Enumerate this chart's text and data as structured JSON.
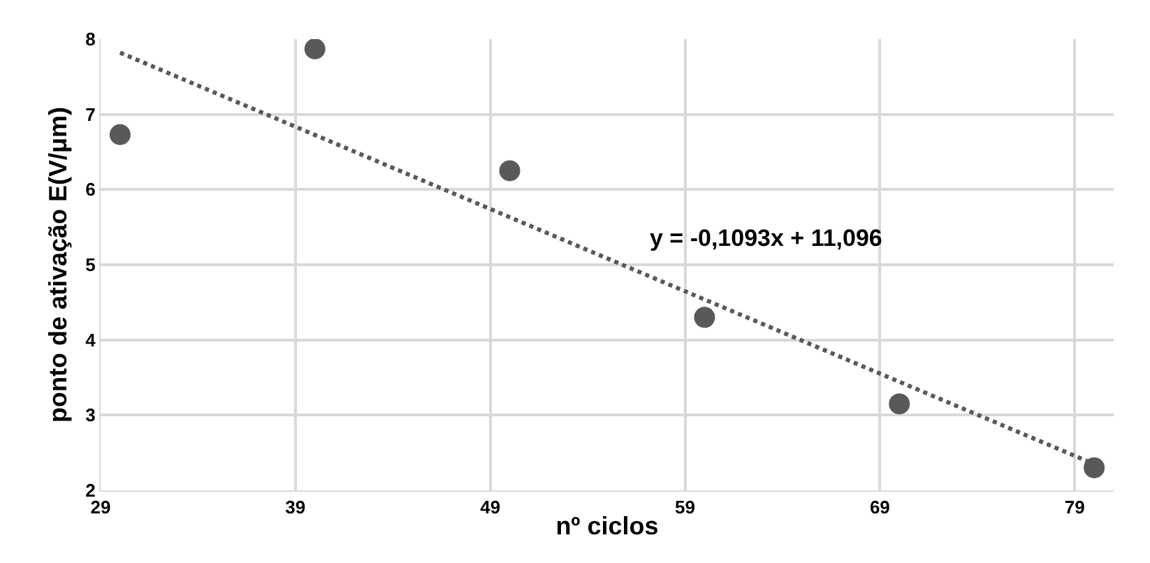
{
  "chart_data": {
    "type": "scatter",
    "xlabel": "nº ciclos",
    "ylabel": "ponto de ativação E(V/μm)",
    "xlim": [
      29,
      81
    ],
    "xticks": [
      29,
      39,
      49,
      59,
      69,
      79
    ],
    "ylim": [
      2,
      8
    ],
    "yticks": [
      2,
      3,
      4,
      5,
      6,
      7,
      8
    ],
    "grid": true,
    "marker": "circle",
    "series": [
      {
        "color": "#595959",
        "x": [
          30,
          40,
          50,
          60,
          70,
          80
        ],
        "values": [
          6.73,
          7.87,
          6.25,
          4.3,
          3.15,
          2.3
        ]
      },
      {
        "type": "line",
        "color": "#595959",
        "line_style": "dotted",
        "marker": "none",
        "x": [
          30,
          80
        ],
        "values": [
          7.82,
          2.35
        ]
      }
    ],
    "annotations": [
      "y = -0,1093x + 11,096"
    ]
  }
}
